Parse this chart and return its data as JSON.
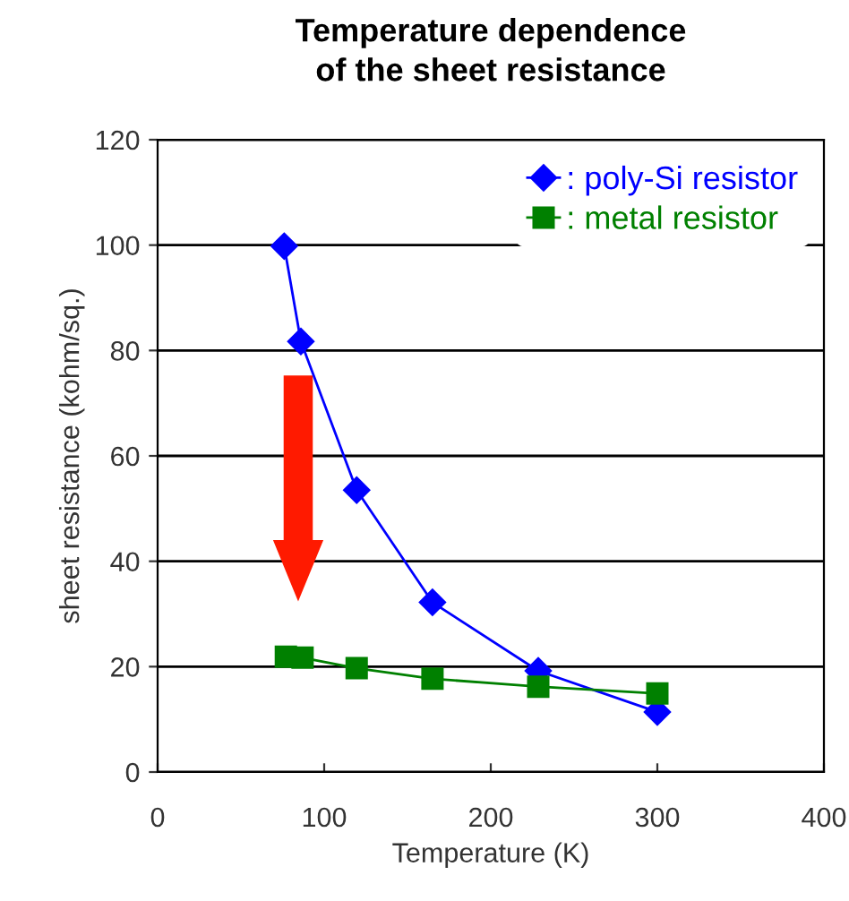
{
  "chart_data": {
    "type": "line",
    "title": "Temperature dependence\nof the sheet resistance",
    "xlabel": "Temperature (K)",
    "ylabel": "sheet resistance (kohm/sq.)",
    "xlim": [
      0,
      400
    ],
    "xticks": [
      0,
      100,
      200,
      300,
      400
    ],
    "ylim": [
      0,
      120
    ],
    "yticks": [
      0,
      20,
      40,
      60,
      80,
      100,
      120
    ],
    "grid": "y",
    "legend": "top right",
    "series": [
      {
        "name": ": poly-Si resistor",
        "color": "#0000ff",
        "marker": "diamond",
        "x": [
          76,
          86,
          119.5,
          165,
          228.5,
          300
        ],
        "values": [
          99.8,
          81.7,
          53.5,
          32.2,
          19.2,
          11.4
        ]
      },
      {
        "name": ": metal resistor",
        "color": "#008000",
        "marker": "square",
        "x": [
          77,
          87,
          119.5,
          165,
          228.5,
          300
        ],
        "values": [
          21.9,
          21.7,
          19.7,
          17.7,
          16.2,
          14.9
        ]
      }
    ]
  }
}
